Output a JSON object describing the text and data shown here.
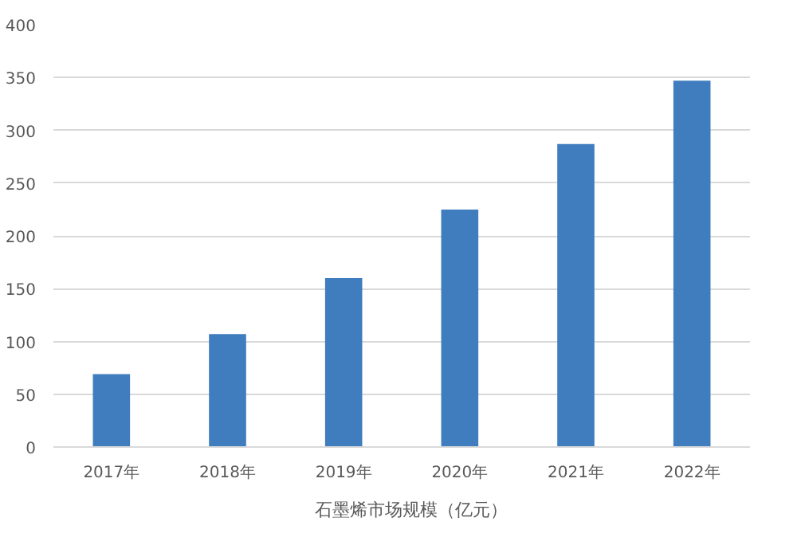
{
  "chart_data": {
    "type": "bar",
    "categories": [
      "2017年",
      "2018年",
      "2019年",
      "2020年",
      "2021年",
      "2022年"
    ],
    "series": [
      {
        "name": "石墨烯市场规模（亿元）",
        "color": "#3f7dbf",
        "values": [
          69,
          107,
          160,
          225,
          287,
          347
        ]
      }
    ],
    "ylim": [
      0,
      400
    ],
    "yticks": [
      0,
      50,
      100,
      150,
      200,
      250,
      300,
      350,
      400
    ],
    "grid": "y",
    "legend": "bottom"
  }
}
